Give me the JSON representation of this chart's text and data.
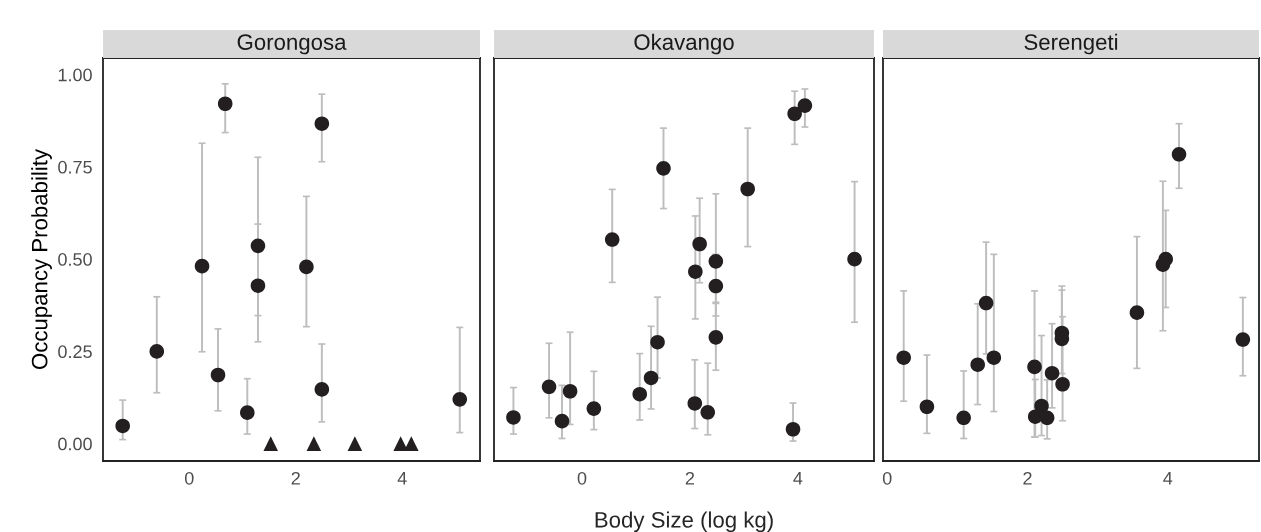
{
  "chart_data": [
    {
      "type": "scatter",
      "title": "Gorongosa",
      "ylabel": "Occupancy Probability",
      "xlim": [
        -1.62,
        5.46
      ],
      "xticks": [
        0,
        2,
        4
      ],
      "ylim": [
        -0.047,
        1.045
      ],
      "yticks": [
        {
          "value": 0,
          "label": "0.00"
        },
        {
          "value": 0.25,
          "label": "0.25"
        },
        {
          "value": 0.5,
          "label": "0.50"
        },
        {
          "value": 0.75,
          "label": "0.75"
        },
        {
          "value": 1,
          "label": "1.00"
        }
      ],
      "grid": false,
      "legend": false,
      "series": [
        {
          "color": "#231f20",
          "marker": "circle",
          "x": [
            -1.25,
            -0.61,
            0.24,
            0.675,
            0.54,
            1.09,
            1.29,
            1.29,
            2.2,
            2.49,
            2.49,
            5.08
          ],
          "values": [
            0.048,
            0.25,
            0.481,
            0.921,
            0.186,
            0.084,
            0.536,
            0.428,
            0.479,
            0.867,
            0.147,
            0.12
          ],
          "errors": [
            [
              0.011,
              0.118
            ],
            [
              0.138,
              0.398
            ],
            [
              0.249,
              0.814
            ],
            [
              0.843,
              0.975
            ],
            [
              0.089,
              0.311
            ],
            [
              0.026,
              0.176
            ],
            [
              0.347,
              0.595
            ],
            [
              0.276,
              0.776
            ],
            [
              0.317,
              0.67
            ],
            [
              0.764,
              0.947
            ],
            [
              0.059,
              0.27
            ],
            [
              0.03,
              0.315
            ]
          ]
        },
        {
          "color": "#231f20",
          "marker": "triangle",
          "x": [
            1.53,
            2.34,
            3.11,
            3.97,
            4.17
          ],
          "values": [
            0,
            0,
            0,
            0,
            0
          ]
        }
      ]
    },
    {
      "type": "scatter",
      "title": "Okavango",
      "xlabel": "Body Size (log kg)",
      "xlim": [
        -1.63,
        5.41
      ],
      "xticks": [
        0,
        2,
        4
      ],
      "ylim": [
        -0.047,
        1.045
      ],
      "tick_labels": "x",
      "grid": false,
      "legend": false,
      "series": [
        {
          "color": "#231f20",
          "marker": "circle",
          "x": [
            -1.27,
            -0.61,
            -0.37,
            -0.22,
            0.22,
            0.56,
            1.07,
            1.28,
            1.4,
            1.51,
            2.09,
            2.1,
            2.18,
            2.33,
            2.48,
            2.48,
            2.48,
            3.07,
            3.91,
            3.94,
            4.13,
            5.05
          ],
          "values": [
            0.071,
            0.154,
            0.061,
            0.142,
            0.095,
            0.553,
            0.134,
            0.178,
            0.275,
            0.746,
            0.109,
            0.466,
            0.541,
            0.085,
            0.494,
            0.427,
            0.288,
            0.69,
            0.039,
            0.894,
            0.916,
            0.5
          ],
          "errors": [
            [
              0.026,
              0.152
            ],
            [
              0.07,
              0.272
            ],
            [
              0.014,
              0.158
            ],
            [
              0.052,
              0.302
            ],
            [
              0.038,
              0.196
            ],
            [
              0.437,
              0.689
            ],
            [
              0.064,
              0.244
            ],
            [
              0.094,
              0.318
            ],
            [
              0.178,
              0.397
            ],
            [
              0.637,
              0.855
            ],
            [
              0.041,
              0.227
            ],
            [
              0.338,
              0.617
            ],
            [
              0.436,
              0.665
            ],
            [
              0.024,
              0.218
            ],
            [
              0.38,
              0.677
            ],
            [
              0.346,
              0.513
            ],
            [
              0.199,
              0.383
            ],
            [
              0.534,
              0.855
            ],
            [
              0.007,
              0.11
            ],
            [
              0.811,
              0.955
            ],
            [
              0.858,
              0.961
            ],
            [
              0.329,
              0.71
            ]
          ]
        }
      ]
    },
    {
      "type": "scatter",
      "title": "Serengeti",
      "xlim": [
        -0.06,
        5.3
      ],
      "xticks": [
        0,
        2,
        4
      ],
      "ylim": [
        -0.047,
        1.045
      ],
      "tick_labels": "x",
      "grid": false,
      "legend": false,
      "series": [
        {
          "color": "#231f20",
          "marker": "circle",
          "x": [
            0.235,
            0.566,
            1.09,
            1.29,
            1.41,
            1.52,
            2.1,
            2.11,
            2.2,
            2.28,
            2.35,
            2.49,
            2.49,
            2.5,
            3.56,
            3.93,
            3.97,
            4.16,
            5.07
          ],
          "values": [
            0.233,
            0.1,
            0.07,
            0.214,
            0.381,
            0.233,
            0.208,
            0.073,
            0.102,
            0.07,
            0.191,
            0.3,
            0.284,
            0.161,
            0.355,
            0.485,
            0.5,
            0.784,
            0.282
          ],
          "errors": [
            [
              0.115,
              0.414
            ],
            [
              0.028,
              0.24
            ],
            [
              0.014,
              0.197
            ],
            [
              0.106,
              0.379
            ],
            [
              0.243,
              0.546
            ],
            [
              0.087,
              0.513
            ],
            [
              0.018,
              0.414
            ],
            [
              0.018,
              0.174
            ],
            [
              0.022,
              0.293
            ],
            [
              0.013,
              0.173
            ],
            [
              0.097,
              0.325
            ],
            [
              0.19,
              0.427
            ],
            [
              0.284,
              0.416
            ],
            [
              0.062,
              0.344
            ],
            [
              0.204,
              0.561
            ],
            [
              0.306,
              0.711
            ],
            [
              0.369,
              0.632
            ],
            [
              0.692,
              0.867
            ],
            [
              0.184,
              0.396
            ]
          ]
        }
      ]
    }
  ]
}
